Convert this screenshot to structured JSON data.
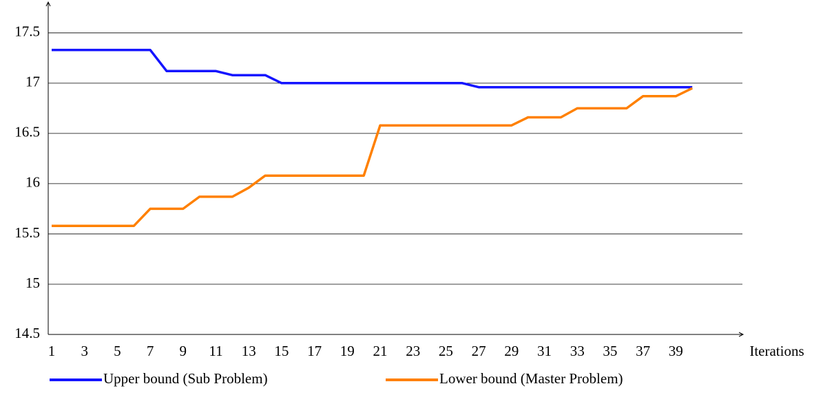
{
  "chart_data": {
    "type": "line",
    "x_label": "Iterations",
    "categories": [
      1,
      null,
      3,
      null,
      5,
      null,
      7,
      null,
      9,
      null,
      11,
      null,
      13,
      null,
      15,
      null,
      17,
      null,
      19,
      null,
      21,
      null,
      23,
      null,
      25,
      null,
      27,
      null,
      29,
      null,
      31,
      null,
      33,
      null,
      35,
      null,
      37,
      null,
      39,
      null
    ],
    "series": [
      {
        "name": "Upper bound (Sub Problem)",
        "color": "#1414ff",
        "values": [
          17.33,
          17.33,
          17.33,
          17.33,
          17.33,
          17.33,
          17.33,
          17.12,
          17.12,
          17.12,
          17.12,
          17.08,
          17.08,
          17.08,
          17.0,
          17.0,
          17.0,
          17.0,
          17.0,
          17.0,
          17.0,
          17.0,
          17.0,
          17.0,
          17.0,
          17.0,
          16.96,
          16.96,
          16.96,
          16.96,
          16.96,
          16.96,
          16.96,
          16.96,
          16.96,
          16.96,
          16.96,
          16.96,
          16.96,
          16.96
        ]
      },
      {
        "name": "Lower bound (Master Problem)",
        "color": "#ff8000",
        "values": [
          15.58,
          15.58,
          15.58,
          15.58,
          15.58,
          15.58,
          15.75,
          15.75,
          15.75,
          15.87,
          15.87,
          15.87,
          15.96,
          16.08,
          16.08,
          16.08,
          16.08,
          16.08,
          16.08,
          16.08,
          16.58,
          16.58,
          16.58,
          16.58,
          16.58,
          16.58,
          16.58,
          16.58,
          16.58,
          16.66,
          16.66,
          16.66,
          16.75,
          16.75,
          16.75,
          16.75,
          16.87,
          16.87,
          16.87,
          16.95
        ]
      }
    ],
    "ylim": [
      14.5,
      17.8
    ],
    "yticks": [
      14.5,
      15,
      15.5,
      16,
      16.5,
      17,
      17.5
    ],
    "grid": true
  }
}
